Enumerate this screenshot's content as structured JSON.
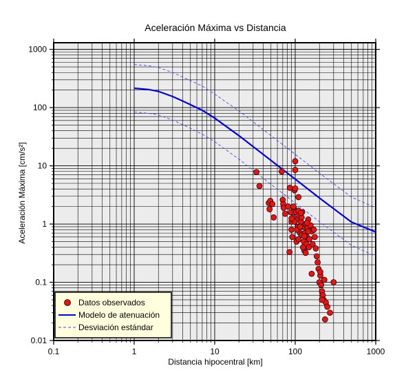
{
  "chart_data": {
    "type": "scatter",
    "title": "Aceleración Máxima vs Distancia",
    "xlabel": "Distancia hipocentral [km]",
    "ylabel": "Aceleración Máxima [cm/s²]",
    "x_scale": "log",
    "y_scale": "log",
    "xlim": [
      0.1,
      1000
    ],
    "ylim": [
      0.01,
      1300
    ],
    "x_ticks": [
      "0.1",
      "1",
      "10",
      "100",
      "1000"
    ],
    "y_ticks": [
      "0.01",
      "0.1",
      "1",
      "10",
      "100",
      "1000"
    ],
    "grid": true,
    "legend_position": "bottom-left",
    "colors": {
      "background": "#ececec",
      "grid": "#000000",
      "points": "#ee1111",
      "model": "#0000ee",
      "deviation": "#4444ff",
      "legend_bg": "#ffffdd"
    },
    "series": [
      {
        "name": "Datos observados",
        "kind": "points",
        "x": [
          33,
          36,
          47,
          48,
          49,
          52,
          54,
          68,
          70,
          71,
          72,
          75,
          82,
          86,
          88,
          90,
          90,
          92,
          94,
          96,
          98,
          100,
          100,
          102,
          104,
          106,
          108,
          110,
          112,
          115,
          118,
          120,
          122,
          125,
          128,
          130,
          132,
          135,
          138,
          140,
          142,
          145,
          148,
          150,
          155,
          160,
          165,
          170,
          175,
          180,
          185,
          190,
          195,
          200,
          205,
          210,
          215,
          220,
          225,
          230,
          240,
          250,
          270,
          300,
          95,
          98,
          105,
          110,
          115,
          120,
          125,
          130,
          135,
          140,
          100,
          90,
          85,
          110,
          160,
          205,
          215,
          235,
          145,
          118
        ],
        "y": [
          7.8,
          4.5,
          2.3,
          1.8,
          2.5,
          2.2,
          1.3,
          8.0,
          2.6,
          2.2,
          1.9,
          1.5,
          2.0,
          4.2,
          1.6,
          1.1,
          0.8,
          0.6,
          1.3,
          1.9,
          3.8,
          12.0,
          8.5,
          1.6,
          0.5,
          1.2,
          0.9,
          1.7,
          1.4,
          0.7,
          1.1,
          0.65,
          1.6,
          0.9,
          0.5,
          0.35,
          0.7,
          1.0,
          0.45,
          0.6,
          0.85,
          1.2,
          0.4,
          0.55,
          0.95,
          0.75,
          0.45,
          0.8,
          0.6,
          0.38,
          0.28,
          0.22,
          0.17,
          0.1,
          0.13,
          0.09,
          0.07,
          0.06,
          0.05,
          0.11,
          0.045,
          0.038,
          0.03,
          0.1,
          2.0,
          1.1,
          0.8,
          0.55,
          0.9,
          1.3,
          0.4,
          0.62,
          0.32,
          1.05,
          4.1,
          1.25,
          0.33,
          2.9,
          0.14,
          0.15,
          0.05,
          0.023,
          0.75,
          1.55
        ]
      },
      {
        "name": "Modelo de atenuación",
        "kind": "line",
        "x": [
          1,
          1.5,
          2,
          3,
          4,
          5,
          7,
          10,
          20,
          50,
          100,
          200,
          500,
          1000
        ],
        "y": [
          215,
          205,
          190,
          155,
          130,
          112,
          90,
          66,
          33,
          12.4,
          5.9,
          2.8,
          1.08,
          0.73
        ]
      },
      {
        "name": "Desviación estándar",
        "kind": "dashed",
        "x": [
          1,
          1.5,
          2,
          3,
          4,
          5,
          7,
          10,
          20,
          50,
          100,
          200,
          500,
          1000
        ],
        "y": [
          550,
          525,
          490,
          400,
          335,
          290,
          235,
          170,
          88,
          33,
          15.8,
          7.5,
          2.9,
          1.9
        ]
      },
      {
        "name": "Desviación estándar",
        "kind": "dashed",
        "x": [
          1,
          1.5,
          2,
          3,
          4,
          5,
          7,
          10,
          20,
          50,
          100,
          200,
          500,
          1000
        ],
        "y": [
          84,
          80,
          75,
          61,
          51,
          44,
          35,
          26,
          13,
          4.8,
          2.3,
          1.1,
          0.43,
          0.28
        ]
      }
    ]
  }
}
